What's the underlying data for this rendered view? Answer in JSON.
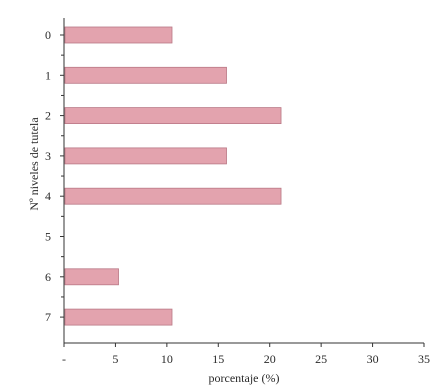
{
  "chart_data": {
    "type": "bar",
    "orientation": "horizontal",
    "categories": [
      "0",
      "1",
      "2",
      "3",
      "4",
      "5",
      "6",
      "7"
    ],
    "values": [
      10.5,
      15.8,
      21.1,
      15.8,
      21.1,
      0,
      5.3,
      10.5
    ],
    "xlabel": "porcentaje (%)",
    "ylabel": "Nº niveles de tutela",
    "xlim": [
      0,
      35
    ],
    "x_ticks": [
      "-",
      "5",
      "10",
      "15",
      "20",
      "25",
      "30",
      "35"
    ],
    "grid": false,
    "legend": "none",
    "bar_color": "#e3a3ae",
    "bar_edge_color": "#b97885"
  }
}
